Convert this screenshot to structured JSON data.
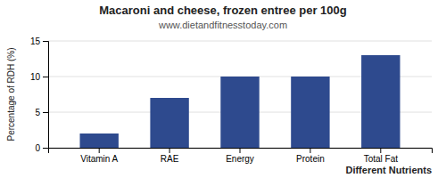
{
  "chart_data": {
    "type": "bar",
    "title": "Macaroni and cheese, frozen entree per 100g",
    "subtitle": "www.dietandfitnesstoday.com",
    "categories": [
      "Vitamin A",
      "RAE",
      "Energy",
      "Protein",
      "Total Fat"
    ],
    "values": [
      2.0,
      7.0,
      10.0,
      10.0,
      13.0
    ],
    "color": "#2e4a8e",
    "xlabel": "Different Nutrients",
    "ylabel": "Percentage of RDH (%)",
    "ylim": [
      0,
      15
    ],
    "yticks": [
      0,
      5,
      10,
      15
    ],
    "grid": true
  }
}
